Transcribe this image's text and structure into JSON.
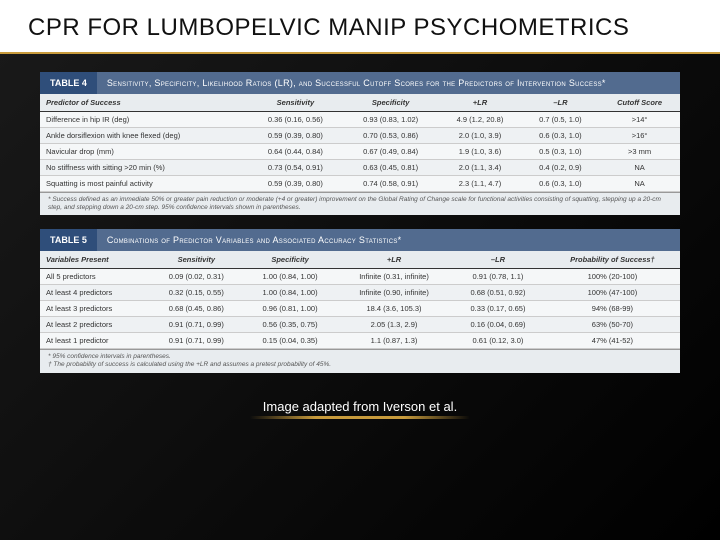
{
  "slide": {
    "title": "CPR FOR LUMBOPELVIC MANIP PSYCHOMETRICS",
    "attribution": "Image adapted from Iverson et al."
  },
  "table4": {
    "tab": "TABLE 4",
    "caption": "Sensitivity, Specificity, Likelihood Ratios (LR), and Successful Cutoff Scores for the Predictors of Intervention Success*",
    "columns": [
      "Predictor of Success",
      "Sensitivity",
      "Specificity",
      "+LR",
      "–LR",
      "Cutoff Score"
    ],
    "rows": [
      [
        "Difference in hip IR (deg)",
        "0.36 (0.16, 0.56)",
        "0.93 (0.83, 1.02)",
        "4.9 (1.2, 20.8)",
        "0.7 (0.5, 1.0)",
        ">14°"
      ],
      [
        "Ankle dorsiflexion with knee flexed (deg)",
        "0.59 (0.39, 0.80)",
        "0.70 (0.53, 0.86)",
        "2.0 (1.0, 3.9)",
        "0.6 (0.3, 1.0)",
        ">16°"
      ],
      [
        "Navicular drop (mm)",
        "0.64 (0.44, 0.84)",
        "0.67 (0.49, 0.84)",
        "1.9 (1.0, 3.6)",
        "0.5 (0.3, 1.0)",
        ">3 mm"
      ],
      [
        "No stiffness with sitting >20 min (%)",
        "0.73 (0.54, 0.91)",
        "0.63 (0.45, 0.81)",
        "2.0 (1.1, 3.4)",
        "0.4 (0.2, 0.9)",
        "NA"
      ],
      [
        "Squatting is most painful activity",
        "0.59 (0.39, 0.80)",
        "0.74 (0.58, 0.91)",
        "2.3 (1.1, 4.7)",
        "0.6 (0.3, 1.0)",
        "NA"
      ]
    ],
    "footnote": "* Success defined as an immediate 50% or greater pain reduction or moderate (+4 or greater) improvement on the Global Rating of Change scale for functional activities consisting of squatting, stepping up a 20-cm step, and stepping down a 20-cm step. 95% confidence intervals shown in parentheses."
  },
  "table5": {
    "tab": "TABLE 5",
    "caption": "Combinations of Predictor Variables and Associated Accuracy Statistics*",
    "columns": [
      "Variables Present",
      "Sensitivity",
      "Specificity",
      "+LR",
      "–LR",
      "Probability of Success†"
    ],
    "rows": [
      [
        "All 5 predictors",
        "0.09 (0.02, 0.31)",
        "1.00 (0.84, 1.00)",
        "Infinite (0.31, infinite)",
        "0.91 (0.78, 1.1)",
        "100% (20-100)"
      ],
      [
        "At least 4 predictors",
        "0.32 (0.15, 0.55)",
        "1.00 (0.84, 1.00)",
        "Infinite (0.90, infinite)",
        "0.68 (0.51, 0.92)",
        "100% (47-100)"
      ],
      [
        "At least 3 predictors",
        "0.68 (0.45, 0.86)",
        "0.96 (0.81, 1.00)",
        "18.4 (3.6, 105.3)",
        "0.33 (0.17, 0.65)",
        "94% (68-99)"
      ],
      [
        "At least 2 predictors",
        "0.91 (0.71, 0.99)",
        "0.56 (0.35, 0.75)",
        "2.05 (1.3, 2.9)",
        "0.16 (0.04, 0.69)",
        "63% (50-70)"
      ],
      [
        "At least 1 predictor",
        "0.91 (0.71, 0.99)",
        "0.15 (0.04, 0.35)",
        "1.1 (0.87, 1.3)",
        "0.61 (0.12, 3.0)",
        "47% (41-52)"
      ]
    ],
    "footnote1": "* 95% confidence intervals in parentheses.",
    "footnote2": "† The probability of success is calculated using the +LR and assumes a pretest probability of 45%."
  },
  "style": {
    "tabColor": "#2f4e7a",
    "captionColor": "#526b8f",
    "accentGold": "#c89b3c"
  }
}
